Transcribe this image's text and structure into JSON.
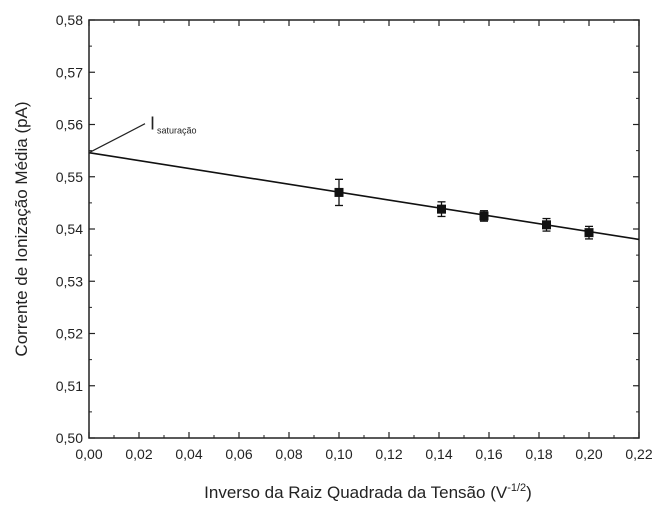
{
  "chart_data": {
    "type": "scatter",
    "xlabel": "Inverso da Raiz Quadrada da Tensão (V",
    "xlabel_sup": "-1/2",
    "xlabel_end": ")",
    "ylabel": "Corrente de Ionização Média (pA)",
    "xlim": [
      0.0,
      0.22
    ],
    "ylim": [
      0.5,
      0.58
    ],
    "x_ticks": [
      "0,00",
      "0,02",
      "0,04",
      "0,06",
      "0,08",
      "0,10",
      "0,12",
      "0,14",
      "0,16",
      "0,18",
      "0,20",
      "0,22"
    ],
    "y_ticks": [
      "0,50",
      "0,51",
      "0,52",
      "0,53",
      "0,54",
      "0,55",
      "0,56",
      "0,57",
      "0,58"
    ],
    "grid": false,
    "points": [
      {
        "x": 0.1,
        "y": 0.547,
        "err": 0.0025
      },
      {
        "x": 0.141,
        "y": 0.5438,
        "err": 0.0014
      },
      {
        "x": 0.158,
        "y": 0.5425,
        "err": 0.001
      },
      {
        "x": 0.183,
        "y": 0.5408,
        "err": 0.0012
      },
      {
        "x": 0.2,
        "y": 0.5393,
        "err": 0.0012
      }
    ],
    "fit_line": {
      "x": [
        0.0,
        0.22
      ],
      "y": [
        0.5546,
        0.538
      ]
    },
    "annotation": {
      "label_main": "I",
      "label_sub": "saturação",
      "x": 0.0,
      "y": 0.5546
    }
  }
}
